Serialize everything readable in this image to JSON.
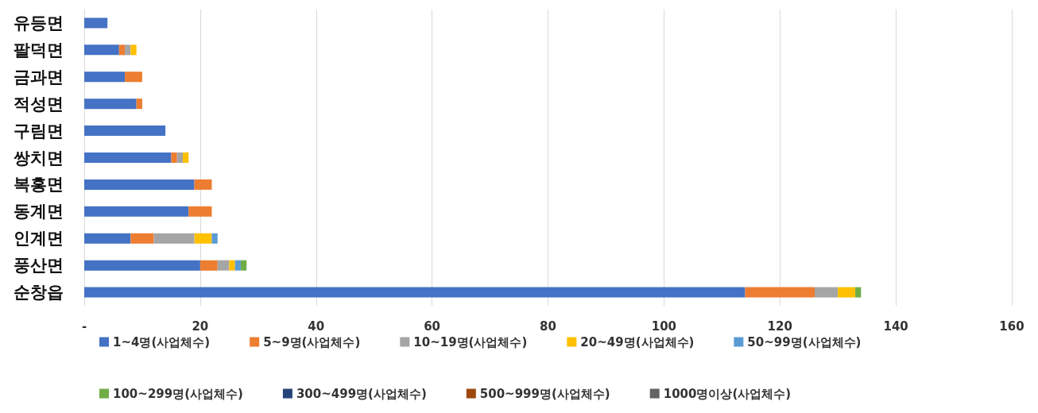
{
  "chart_data": {
    "type": "bar",
    "orientation": "horizontal",
    "stacked": true,
    "categories": [
      "유등면",
      "팔덕면",
      "금과면",
      "적성면",
      "구림면",
      "쌍치면",
      "복흥면",
      "동계면",
      "인계면",
      "풍산면",
      "순창읍"
    ],
    "series": [
      {
        "name": "1~4명(사업체수)",
        "color": "#4472c4",
        "values": [
          4,
          6,
          7,
          9,
          14,
          15,
          19,
          18,
          8,
          20,
          114
        ]
      },
      {
        "name": "5~9명(사업체수)",
        "color": "#ed7d31",
        "values": [
          0,
          1,
          3,
          1,
          0,
          1,
          3,
          4,
          4,
          3,
          12
        ]
      },
      {
        "name": "10~19명(사업체수)",
        "color": "#a5a5a5",
        "values": [
          0,
          1,
          0,
          0,
          0,
          1,
          0,
          0,
          7,
          2,
          4
        ]
      },
      {
        "name": "20~49명(사업체수)",
        "color": "#ffc000",
        "values": [
          0,
          1,
          0,
          0,
          0,
          1,
          0,
          0,
          3,
          1,
          3
        ]
      },
      {
        "name": "50~99명(사업체수)",
        "color": "#5b9bd5",
        "values": [
          0,
          0,
          0,
          0,
          0,
          0,
          0,
          0,
          1,
          1,
          0
        ]
      },
      {
        "name": "100~299명(사업체수)",
        "color": "#70ad47",
        "values": [
          0,
          0,
          0,
          0,
          0,
          0,
          0,
          0,
          0,
          1,
          1
        ]
      },
      {
        "name": "300~499명(사업체수)",
        "color": "#264478",
        "values": [
          0,
          0,
          0,
          0,
          0,
          0,
          0,
          0,
          0,
          0,
          0
        ]
      },
      {
        "name": "500~999명(사업체수)",
        "color": "#9e480e",
        "values": [
          0,
          0,
          0,
          0,
          0,
          0,
          0,
          0,
          0,
          0,
          0
        ]
      },
      {
        "name": "1000명이상(사업체수)",
        "color": "#636363",
        "values": [
          0,
          0,
          0,
          0,
          0,
          0,
          0,
          0,
          0,
          0,
          0
        ]
      }
    ],
    "xlim": [
      0,
      160
    ],
    "xticks": [
      {
        "value": 0,
        "label": "-"
      },
      20,
      40,
      60,
      80,
      100,
      120,
      140,
      160
    ],
    "grid": "x",
    "legend": "bottom"
  }
}
